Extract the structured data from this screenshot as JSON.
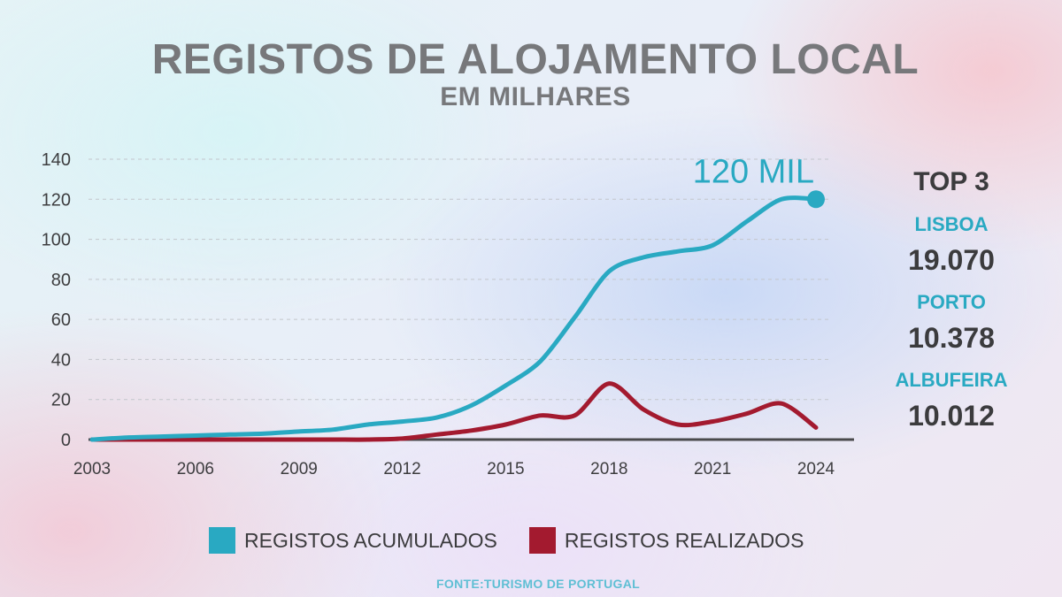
{
  "chart_data": {
    "type": "line",
    "title": "REGISTOS DE ALOJAMENTO LOCAL",
    "subtitle": "EM MILHARES",
    "x": [
      2003,
      2004,
      2005,
      2006,
      2007,
      2008,
      2009,
      2010,
      2011,
      2012,
      2013,
      2014,
      2015,
      2016,
      2017,
      2018,
      2019,
      2020,
      2021,
      2022,
      2023,
      2024
    ],
    "x_ticks": [
      2003,
      2006,
      2009,
      2012,
      2015,
      2018,
      2021,
      2024
    ],
    "y_ticks": [
      0,
      20,
      40,
      60,
      80,
      100,
      120,
      140
    ],
    "ylim": [
      0,
      140
    ],
    "grid": true,
    "series": [
      {
        "name": "REGISTOS ACUMULADOS",
        "color": "#29a9c2",
        "values": [
          0,
          1,
          1.5,
          2,
          2.5,
          3,
          4,
          5,
          7.5,
          9,
          11,
          17,
          27,
          39,
          61,
          84,
          91,
          94,
          97,
          109,
          120,
          120
        ]
      },
      {
        "name": "REGISTOS REALIZADOS",
        "color": "#a31a2f",
        "values": [
          0,
          0,
          0,
          0,
          0,
          0,
          0,
          0,
          0,
          0.5,
          2.5,
          4.5,
          7.5,
          12,
          12,
          28,
          15,
          7.5,
          9,
          13,
          18,
          6
        ]
      }
    ],
    "annotation": {
      "text": "120 MIL",
      "x": 2024,
      "y": 120
    },
    "legend_position": "bottom"
  },
  "top3": {
    "title": "TOP 3",
    "items": [
      {
        "city": "LISBOA",
        "value": "19.070"
      },
      {
        "city": "PORTO",
        "value": "10.378"
      },
      {
        "city": "ALBUFEIRA",
        "value": "10.012"
      }
    ]
  },
  "source": "FONTE:TURISMO DE PORTUGAL",
  "colors": {
    "accent": "#29a9c2",
    "secondary": "#a31a2f",
    "text": "#3b3b3d",
    "title": "#77787b"
  }
}
